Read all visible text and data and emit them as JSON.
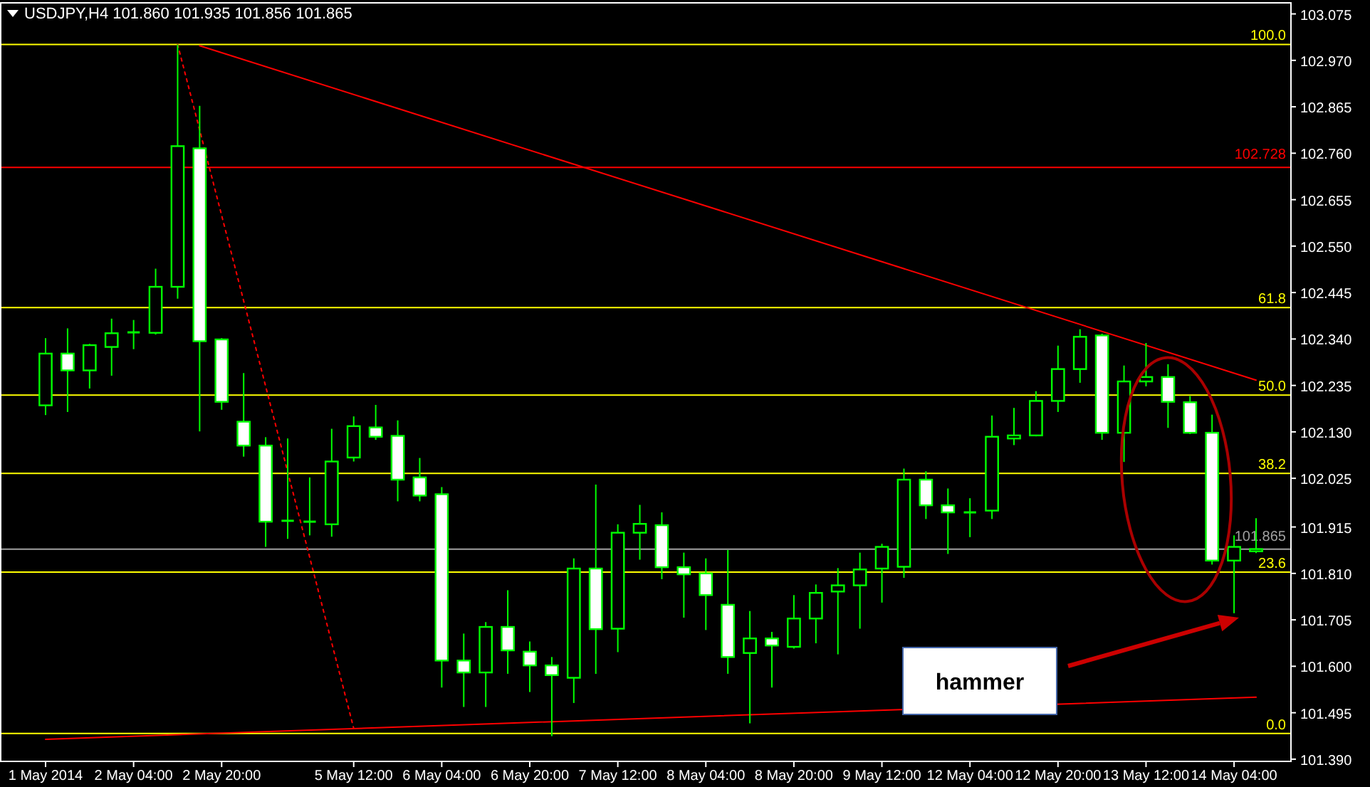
{
  "chart_data": {
    "type": "candlestick",
    "title": "USDJPY,H4 101.860 101.935 101.856 101.865",
    "color": "#00ff00",
    "categories": [
      "1 May 2014",
      null,
      null,
      null,
      "2 May 04:00",
      null,
      null,
      null,
      "2 May 20:00",
      null,
      null,
      null,
      null,
      null,
      "5 May 12:00",
      null,
      null,
      null,
      "6 May 04:00",
      null,
      null,
      null,
      "6 May 20:00",
      null,
      null,
      null,
      "7 May 12:00",
      null,
      null,
      null,
      "8 May 04:00",
      null,
      null,
      null,
      "8 May 20:00",
      null,
      null,
      null,
      "9 May 12:00",
      null,
      null,
      null,
      "12 May 04:00",
      null,
      null,
      null,
      "12 May 20:00",
      null,
      null,
      null,
      "13 May 12:00",
      null,
      null,
      null,
      "14 May 04:00",
      null
    ],
    "ohlc": [
      [
        102.19,
        102.342,
        102.168,
        102.307
      ],
      [
        102.307,
        102.364,
        102.175,
        102.269
      ],
      [
        102.269,
        102.329,
        102.228,
        102.326
      ],
      [
        102.322,
        102.386,
        102.257,
        102.353
      ],
      [
        102.355,
        102.383,
        102.317,
        102.355
      ],
      [
        102.354,
        102.499,
        102.35,
        102.458
      ],
      [
        102.458,
        103.006,
        102.431,
        102.776
      ],
      [
        102.771,
        102.867,
        102.131,
        102.335
      ],
      [
        102.339,
        102.342,
        102.18,
        102.198
      ],
      [
        102.153,
        102.263,
        102.074,
        102.099
      ],
      [
        102.099,
        102.118,
        101.87,
        101.927
      ],
      [
        101.929,
        102.115,
        101.888,
        101.929
      ],
      [
        101.927,
        102.027,
        101.896,
        101.927
      ],
      [
        101.921,
        102.137,
        101.893,
        102.063
      ],
      [
        102.072,
        102.165,
        102.063,
        102.143
      ],
      [
        102.14,
        102.191,
        102.112,
        102.119
      ],
      [
        102.121,
        102.156,
        101.973,
        102.022
      ],
      [
        102.027,
        102.071,
        101.973,
        101.986
      ],
      [
        101.989,
        102.005,
        101.552,
        101.613
      ],
      [
        101.613,
        101.674,
        101.508,
        101.586
      ],
      [
        101.586,
        101.7,
        101.508,
        101.689
      ],
      [
        101.689,
        101.772,
        101.583,
        101.636
      ],
      [
        101.633,
        101.656,
        101.542,
        101.602
      ],
      [
        101.602,
        101.621,
        101.442,
        101.58
      ],
      [
        101.574,
        101.844,
        101.517,
        101.821
      ],
      [
        101.821,
        102.011,
        101.583,
        101.684
      ],
      [
        101.685,
        101.921,
        101.632,
        101.902
      ],
      [
        101.902,
        101.965,
        101.841,
        101.922
      ],
      [
        101.919,
        101.948,
        101.797,
        101.824
      ],
      [
        101.824,
        101.857,
        101.71,
        101.808
      ],
      [
        101.81,
        101.844,
        101.682,
        101.761
      ],
      [
        101.739,
        101.863,
        101.583,
        101.621
      ],
      [
        101.63,
        101.725,
        101.471,
        101.663
      ],
      [
        101.663,
        101.678,
        101.552,
        101.647
      ],
      [
        101.644,
        101.761,
        101.64,
        101.708
      ],
      [
        101.708,
        101.785,
        101.652,
        101.766
      ],
      [
        101.769,
        101.822,
        101.627,
        101.783
      ],
      [
        101.783,
        101.857,
        101.685,
        101.819
      ],
      [
        101.821,
        101.877,
        101.744,
        101.87
      ],
      [
        101.825,
        102.047,
        101.8,
        102.022
      ],
      [
        102.022,
        102.041,
        101.933,
        101.964
      ],
      [
        101.964,
        102.002,
        101.854,
        101.948
      ],
      [
        101.948,
        101.98,
        101.892,
        101.948
      ],
      [
        101.952,
        102.167,
        101.933,
        102.119
      ],
      [
        102.115,
        102.184,
        102.1,
        102.122
      ],
      [
        102.122,
        102.222,
        102.12,
        102.2
      ],
      [
        102.2,
        102.325,
        102.175,
        102.272
      ],
      [
        102.272,
        102.362,
        102.241,
        102.345
      ],
      [
        102.348,
        102.352,
        102.112,
        102.128
      ],
      [
        102.128,
        102.28,
        102.062,
        102.244
      ],
      [
        102.244,
        102.331,
        102.233,
        102.254
      ],
      [
        102.254,
        102.283,
        102.139,
        102.198
      ],
      [
        102.197,
        102.211,
        102.125,
        102.128
      ],
      [
        102.128,
        102.169,
        101.83,
        101.839
      ],
      [
        101.839,
        101.896,
        101.72,
        101.87
      ],
      [
        101.86,
        101.935,
        101.856,
        101.865
      ]
    ],
    "series": [
      {
        "type": "line",
        "color": "#ff0000",
        "line_style": "solid",
        "values": [
          null,
          null,
          null,
          null,
          null,
          null,
          null,
          103.003,
          null,
          null,
          null,
          null,
          null,
          null,
          null,
          null,
          null,
          null,
          null,
          null,
          null,
          null,
          null,
          null,
          null,
          null,
          null,
          null,
          null,
          null,
          null,
          null,
          null,
          null,
          null,
          null,
          null,
          null,
          null,
          null,
          null,
          null,
          null,
          null,
          null,
          null,
          null,
          null,
          null,
          null,
          null,
          null,
          null,
          null,
          null,
          102.247
        ]
      },
      {
        "type": "line",
        "color": "#ff0000",
        "line_style": "dotted",
        "values": [
          null,
          null,
          null,
          null,
          null,
          null,
          103.006,
          null,
          null,
          null,
          null,
          null,
          null,
          null,
          101.46,
          null,
          null,
          null,
          null,
          null,
          null,
          null,
          null,
          null,
          null,
          null,
          null,
          null,
          null,
          null,
          null,
          null,
          null,
          null,
          null,
          null,
          null,
          null,
          null,
          null,
          null,
          null,
          null,
          null,
          null,
          null,
          null,
          null,
          null,
          null,
          null,
          null,
          null,
          null,
          null,
          null
        ]
      },
      {
        "type": "line",
        "color": "#ff0000",
        "line_style": "solid",
        "values": [
          101.435,
          null,
          null,
          null,
          null,
          null,
          null,
          null,
          null,
          null,
          null,
          null,
          null,
          null,
          null,
          null,
          null,
          null,
          null,
          null,
          null,
          null,
          null,
          null,
          null,
          null,
          null,
          null,
          null,
          null,
          null,
          null,
          null,
          null,
          null,
          null,
          null,
          null,
          null,
          null,
          null,
          null,
          null,
          null,
          null,
          null,
          null,
          null,
          null,
          null,
          null,
          null,
          null,
          null,
          null,
          101.53
        ]
      }
    ],
    "ylim": [
      101.385,
      103.1
    ],
    "yticks": [
      103.075,
      {
        "value": 102.97,
        "label": "102.970"
      },
      102.865,
      {
        "value": 102.76,
        "label": "102.760"
      },
      102.655,
      {
        "value": 102.55,
        "label": "102.550"
      },
      102.445,
      {
        "value": 102.34,
        "label": "102.340"
      },
      102.235,
      {
        "value": 102.13,
        "label": "102.130"
      },
      102.025,
      101.915,
      {
        "value": 101.81,
        "label": "101.810"
      },
      101.705,
      {
        "value": 101.6,
        "label": "101.600"
      },
      101.495,
      {
        "value": 101.39,
        "label": "101.390"
      }
    ],
    "ref_lines": [
      {
        "axis": "y",
        "value": 103.006,
        "color": "#ffff00"
      },
      {
        "axis": "y",
        "value": 102.411,
        "color": "#ffff00"
      },
      {
        "axis": "y",
        "value": 102.213,
        "color": "#ffff00"
      },
      {
        "axis": "y",
        "value": 102.036,
        "color": "#ffff00"
      },
      {
        "axis": "y",
        "value": 101.813,
        "color": "#ffff00"
      },
      {
        "axis": "y",
        "value": 101.448,
        "color": "#ffff00"
      },
      {
        "axis": "y",
        "value": 102.728,
        "label": "102.728",
        "color": "#ff0000"
      },
      {
        "axis": "y",
        "value": 101.865,
        "label": "101.865",
        "color": "#a0a0a0"
      }
    ],
    "annotations": [
      "hammer",
      {
        "text": "100.0",
        "y": 103.006
      },
      {
        "text": "61.8",
        "y": 102.411
      },
      {
        "text": "50.0",
        "y": 102.213
      },
      {
        "text": "38.2",
        "y": 102.036
      },
      {
        "text": "23.6",
        "y": 101.813
      },
      {
        "text": "0.0",
        "y": 101.448
      }
    ]
  }
}
